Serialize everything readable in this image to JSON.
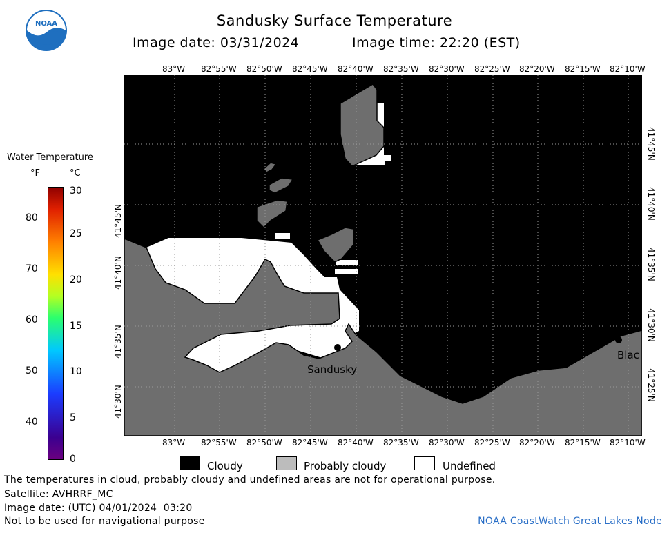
{
  "header": {
    "title": "Sandusky Surface Temperature",
    "image_date": "Image date: 03/31/2024",
    "image_time": "Image time: 22:20 (EST)",
    "logo_text": "NOAA"
  },
  "colorbar": {
    "title": "Water Temperature",
    "unit_f": "°F",
    "unit_c": "°C",
    "f_ticks": [
      "80",
      "70",
      "60",
      "50",
      "40"
    ],
    "c_ticks": [
      "30",
      "25",
      "20",
      "15",
      "10",
      "5",
      "0"
    ]
  },
  "map": {
    "lon_labels": [
      "83°W",
      "82°55'W",
      "82°50'W",
      "82°45'W",
      "82°40'W",
      "82°35'W",
      "82°30'W",
      "82°25'W",
      "82°20'W",
      "82°15'W",
      "82°10'W"
    ],
    "lat_labels": [
      "41°45'N",
      "41°40'N",
      "41°35'N",
      "41°30'N",
      "41°25'N"
    ],
    "places": {
      "sandusky": "Sandusky",
      "east_town": "Blac"
    },
    "colors": {
      "land": "#6e6e6e",
      "cloudy": "#000000",
      "probably_cloudy": "#787878",
      "undefined": "#ffffff"
    }
  },
  "legend": {
    "cloudy": "Cloudy",
    "probably_cloudy": "Probably cloudy",
    "undefined": "Undefined"
  },
  "footer": {
    "disclaimer": "The temperatures in cloud, probably cloudy and undefined areas are not for operational purpose.",
    "satellite": "Satellite: AVHRRF_MC",
    "utc_date": "Image date: (UTC) 04/01/2024  03:20",
    "nav_warning": "Not to be used for navigational purpose",
    "credit": "NOAA CoastWatch Great Lakes Node"
  }
}
